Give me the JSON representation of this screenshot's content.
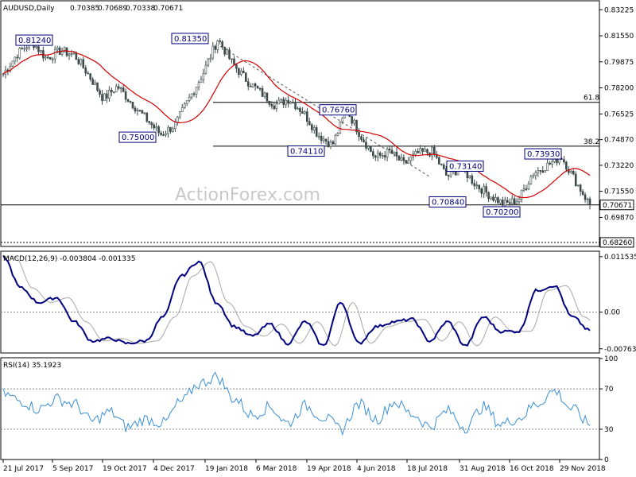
{
  "chart_data": [
    {
      "type": "candlestick",
      "title": "AUDUSD,Daily",
      "ohlc": [
        "0.70385",
        "0.70689",
        "0.70338",
        "0.70671"
      ],
      "watermark": "ActionForex.com",
      "ylim": [
        0.68,
        0.8375
      ],
      "y_ticks": [
        "0.83225",
        "0.81550",
        "0.79875",
        "0.78200",
        "0.76525",
        "0.74870",
        "0.73220",
        "0.71550",
        "0.69870"
      ],
      "x_ticks": [
        "21 Jul 2017",
        "5 Sep 2017",
        "19 Oct 2017",
        "4 Dec 2017",
        "19 Jan 2018",
        "6 Mar 2018",
        "19 Apr 2018",
        "4 Jun 2018",
        "18 Jul 2018",
        "31 Aug 2018",
        "16 Oct 2018",
        "29 Nov 2018"
      ],
      "current_price": {
        "value": 0.70671,
        "label": "0.70671"
      },
      "support_line": {
        "value": 0.6826,
        "label": "0.68260"
      },
      "fib_levels": [
        {
          "value": 0.7727,
          "label": "61.8"
        },
        {
          "value": 0.7445,
          "label": "38.2"
        }
      ],
      "annotations": [
        {
          "label": "0.81240",
          "value": 0.8124
        },
        {
          "label": "0.81350",
          "value": 0.8135
        },
        {
          "label": "0.75000",
          "value": 0.75
        },
        {
          "label": "0.76760",
          "value": 0.7676
        },
        {
          "label": "0.74110",
          "value": 0.7411
        },
        {
          "label": "0.73140",
          "value": 0.7314
        },
        {
          "label": "0.70840",
          "value": 0.7084
        },
        {
          "label": "0.70200",
          "value": 0.702
        },
        {
          "label": "0.73930",
          "value": 0.7393
        }
      ],
      "price_path": [
        0.791,
        0.804,
        0.812,
        0.801,
        0.806,
        0.803,
        0.79,
        0.775,
        0.783,
        0.772,
        0.762,
        0.752,
        0.758,
        0.775,
        0.792,
        0.8135,
        0.798,
        0.787,
        0.779,
        0.771,
        0.775,
        0.766,
        0.752,
        0.745,
        0.768,
        0.751,
        0.737,
        0.741,
        0.733,
        0.74,
        0.741,
        0.725,
        0.731,
        0.72,
        0.713,
        0.707,
        0.71,
        0.727,
        0.732,
        0.738,
        0.722,
        0.7067
      ]
    },
    {
      "type": "line",
      "title": "MACD(12,26,9) -0.003804 -0.001335",
      "ylim": [
        -0.0085,
        0.0125
      ],
      "y_ticks": [
        "0.011535",
        "0.00",
        "-0.007634"
      ],
      "macd": [
        0.0115,
        0.005,
        0.002,
        0.003,
        -0.002,
        -0.006,
        -0.0055,
        -0.0065,
        -0.006,
        -0.001,
        0.0075,
        0.0105,
        0.002,
        -0.003,
        -0.005,
        -0.0025,
        -0.0065,
        -0.002,
        -0.007,
        0.002,
        -0.0065,
        -0.003,
        -0.002,
        -0.0015,
        -0.006,
        -0.002,
        -0.007,
        -0.001,
        -0.004,
        -0.004,
        0.0045,
        0.0055,
        -0.001,
        -0.0038
      ]
    },
    {
      "type": "line",
      "title": "RSI(14) 35.1923",
      "ylim": [
        0,
        100
      ],
      "y_ticks": [
        "100",
        "70",
        "30",
        "0"
      ],
      "levels": [
        70,
        30
      ],
      "rsi": [
        65,
        58,
        50,
        60,
        55,
        38,
        47,
        32,
        40,
        36,
        57,
        75,
        82,
        60,
        44,
        52,
        36,
        53,
        42,
        30,
        55,
        40,
        57,
        45,
        33,
        48,
        32,
        52,
        35,
        41,
        55,
        68,
        50,
        35
      ]
    }
  ]
}
